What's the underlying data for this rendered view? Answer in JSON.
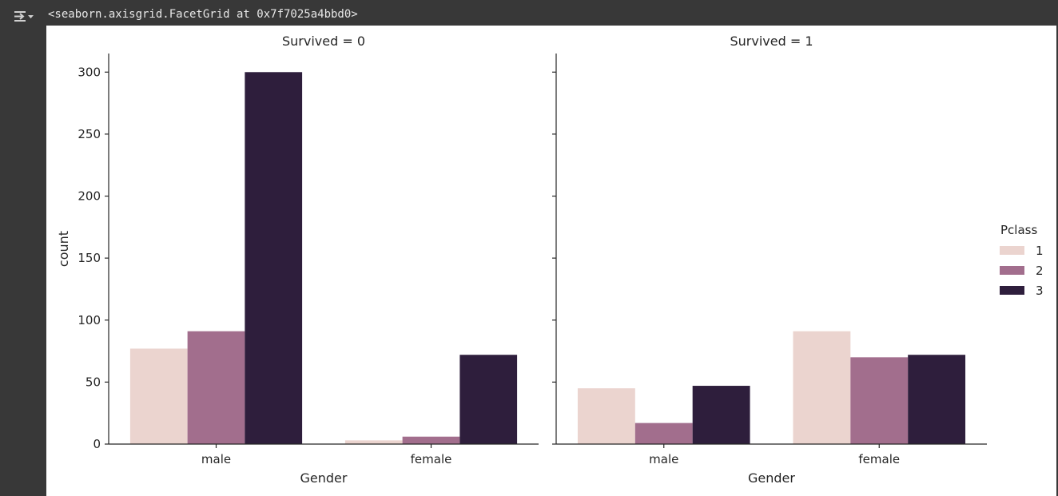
{
  "output": {
    "repr": "<seaborn.axisgrid.FacetGrid at 0x7f7025a4bbd0>",
    "icon": "output-toggle-icon"
  },
  "chart_data": {
    "type": "bar",
    "facet_variable": "Survived",
    "xlabel": "Gender",
    "ylabel": "count",
    "ylim": [
      0,
      315
    ],
    "yticks": [
      0,
      50,
      100,
      150,
      200,
      250,
      300
    ],
    "categories": [
      "male",
      "female"
    ],
    "legend": {
      "title": "Pclass",
      "placement": "right",
      "entries": [
        "1",
        "2",
        "3"
      ]
    },
    "colors": [
      "#ebd4cf",
      "#a26e8d",
      "#2e1e3c"
    ],
    "facets": [
      {
        "title": "Survived = 0",
        "series": [
          {
            "name": "1",
            "values": [
              77,
              3
            ]
          },
          {
            "name": "2",
            "values": [
              91,
              6
            ]
          },
          {
            "name": "3",
            "values": [
              300,
              72
            ]
          }
        ]
      },
      {
        "title": "Survived = 1",
        "series": [
          {
            "name": "1",
            "values": [
              45,
              91
            ]
          },
          {
            "name": "2",
            "values": [
              17,
              70
            ]
          },
          {
            "name": "3",
            "values": [
              47,
              72
            ]
          }
        ]
      }
    ]
  }
}
